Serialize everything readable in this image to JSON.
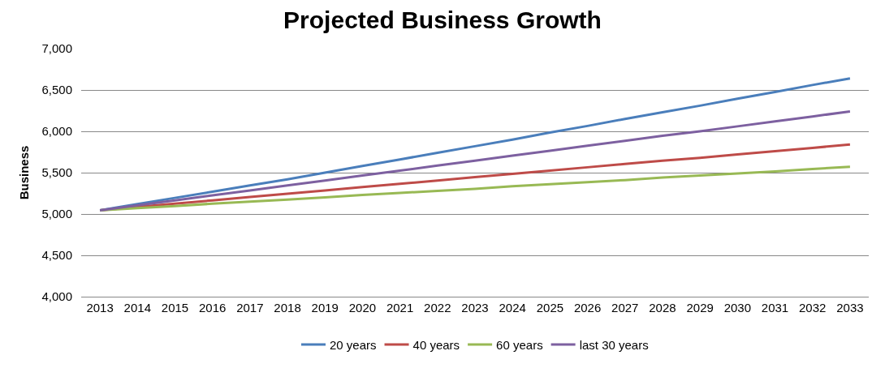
{
  "chart_data": {
    "type": "line",
    "title": "Projected Business Growth",
    "ylabel": "Business",
    "categories": [
      "2013",
      "2014",
      "2015",
      "2016",
      "2017",
      "2018",
      "2019",
      "2020",
      "2021",
      "2022",
      "2023",
      "2024",
      "2025",
      "2026",
      "2027",
      "2028",
      "2029",
      "2030",
      "2031",
      "2032",
      "2033"
    ],
    "series": [
      {
        "name": "20 years",
        "color": "#4a7ebb",
        "values": [
          5045,
          5120,
          5195,
          5270,
          5345,
          5420,
          5500,
          5580,
          5660,
          5740,
          5820,
          5900,
          5985,
          6065,
          6150,
          6230,
          6310,
          6395,
          6475,
          6560,
          6640
        ]
      },
      {
        "name": "40 years",
        "color": "#be4b48",
        "values": [
          5045,
          5085,
          5125,
          5165,
          5205,
          5245,
          5285,
          5325,
          5365,
          5405,
          5445,
          5485,
          5525,
          5565,
          5605,
          5645,
          5680,
          5720,
          5760,
          5800,
          5840
        ]
      },
      {
        "name": "60 years",
        "color": "#98b954",
        "values": [
          5045,
          5070,
          5095,
          5125,
          5150,
          5175,
          5200,
          5230,
          5255,
          5280,
          5305,
          5335,
          5360,
          5385,
          5410,
          5440,
          5465,
          5490,
          5515,
          5545,
          5570
        ]
      },
      {
        "name": "last 30 years",
        "color": "#7d60a0",
        "values": [
          5045,
          5105,
          5165,
          5225,
          5285,
          5345,
          5405,
          5465,
          5525,
          5585,
          5645,
          5705,
          5765,
          5825,
          5885,
          5945,
          6000,
          6060,
          6120,
          6180,
          6240
        ]
      }
    ],
    "ylim": [
      4000,
      7000
    ],
    "yticks": [
      {
        "value": 4000,
        "label": "4,000"
      },
      {
        "value": 4500,
        "label": "4,500"
      },
      {
        "value": 5000,
        "label": "5,000"
      },
      {
        "value": 5500,
        "label": "5,500"
      },
      {
        "value": 6000,
        "label": "6,000"
      },
      {
        "value": 6500,
        "label": "6,500"
      },
      {
        "value": 7000,
        "label": "7,000"
      }
    ],
    "grid": "y",
    "legend": "bottom",
    "marker": "none",
    "line_style": "solid"
  }
}
